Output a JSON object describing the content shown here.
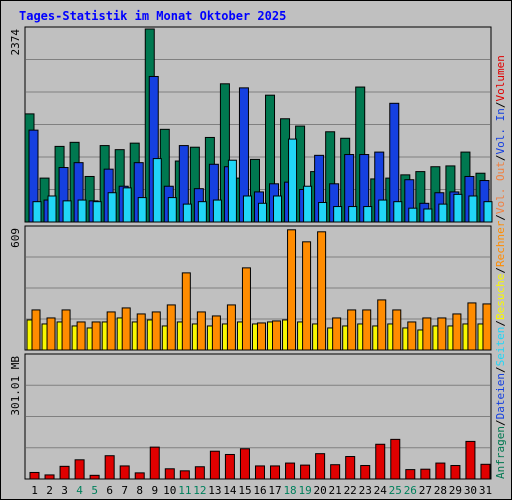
{
  "chart_data": [
    {
      "type": "bar",
      "panel": "requests",
      "title": "Tages-Statistik im Monat Oktober 2025",
      "ylabel_top": "2374",
      "categories": [
        "1",
        "2",
        "3",
        "4",
        "5",
        "6",
        "7",
        "8",
        "9",
        "10",
        "11",
        "12",
        "13",
        "14",
        "15",
        "16",
        "17",
        "18",
        "19",
        "20",
        "21",
        "22",
        "23",
        "24",
        "25",
        "26",
        "27",
        "28",
        "29",
        "30",
        "31"
      ],
      "weekend_days": [
        "4",
        "5",
        "11",
        "12",
        "18",
        "19",
        "25",
        "26"
      ],
      "ylim": [
        0,
        2374
      ],
      "series": [
        {
          "name": "Anfragen",
          "color": "#007850",
          "values": [
            1330,
            540,
            930,
            980,
            560,
            940,
            890,
            970,
            2374,
            1140,
            750,
            920,
            1040,
            1700,
            540,
            770,
            1560,
            1270,
            1180,
            620,
            1110,
            1030,
            1660,
            530,
            540,
            580,
            620,
            680,
            690,
            860,
            600
          ]
        },
        {
          "name": "Dateien",
          "color": "#1540e0",
          "values": [
            1130,
            270,
            670,
            730,
            260,
            650,
            440,
            730,
            1790,
            440,
            940,
            410,
            710,
            680,
            1650,
            370,
            470,
            490,
            400,
            820,
            470,
            830,
            830,
            860,
            1460,
            520,
            230,
            360,
            370,
            560,
            510
          ]
        },
        {
          "name": "Seiten",
          "color": "#21d6f7",
          "values": [
            250,
            320,
            260,
            270,
            250,
            360,
            420,
            300,
            780,
            300,
            220,
            250,
            270,
            760,
            320,
            230,
            320,
            1020,
            440,
            240,
            190,
            190,
            190,
            270,
            250,
            170,
            160,
            220,
            340,
            320,
            250
          ]
        }
      ]
    },
    {
      "type": "bar",
      "panel": "visits",
      "ylabel_top": "609",
      "categories": [
        "1",
        "2",
        "3",
        "4",
        "5",
        "6",
        "7",
        "8",
        "9",
        "10",
        "11",
        "12",
        "13",
        "14",
        "15",
        "16",
        "17",
        "18",
        "19",
        "20",
        "21",
        "22",
        "23",
        "24",
        "25",
        "26",
        "27",
        "28",
        "29",
        "30",
        "31"
      ],
      "ylim": [
        0,
        609
      ],
      "series": [
        {
          "name": "Besuche",
          "color": "#f8f800",
          "values": [
            150,
            130,
            140,
            120,
            110,
            140,
            160,
            140,
            150,
            120,
            140,
            130,
            120,
            130,
            140,
            130,
            140,
            150,
            140,
            130,
            110,
            120,
            130,
            120,
            130,
            110,
            100,
            120,
            120,
            130,
            130
          ]
        },
        {
          "name": "Rechner",
          "color": "#ff8c00",
          "values": [
            200,
            160,
            200,
            140,
            140,
            190,
            210,
            180,
            190,
            225,
            385,
            190,
            170,
            225,
            410,
            135,
            145,
            600,
            540,
            590,
            160,
            200,
            200,
            250,
            200,
            140,
            160,
            160,
            180,
            235,
            230
          ]
        }
      ]
    },
    {
      "type": "bar",
      "panel": "volume",
      "ylabel_top": "301.01 MB",
      "categories": [
        "1",
        "2",
        "3",
        "4",
        "5",
        "6",
        "7",
        "8",
        "9",
        "10",
        "11",
        "12",
        "13",
        "14",
        "15",
        "16",
        "17",
        "18",
        "19",
        "20",
        "21",
        "22",
        "23",
        "24",
        "25",
        "26",
        "27",
        "28",
        "29",
        "30",
        "31"
      ],
      "ylim": [
        0,
        301.01
      ],
      "series": [
        {
          "name": "Volumen",
          "color": "#e00000",
          "values": [
            16,
            10,
            31,
            47,
            9,
            57,
            32,
            15,
            78,
            25,
            20,
            30,
            68,
            60,
            74,
            32,
            32,
            39,
            34,
            62,
            35,
            55,
            33,
            85,
            97,
            23,
            24,
            39,
            33,
            92,
            36
          ]
        }
      ]
    }
  ],
  "legend_right": [
    {
      "text": "Anfragen",
      "color": "#007850"
    },
    {
      "text": "/",
      "color": "#000000"
    },
    {
      "text": "Dateien",
      "color": "#1540e0"
    },
    {
      "text": "/",
      "color": "#000000"
    },
    {
      "text": "Seiten",
      "color": "#21d6f7"
    },
    {
      "text": "/",
      "color": "#000000"
    },
    {
      "text": "Besuche",
      "color": "#f8f800"
    },
    {
      "text": "/",
      "color": "#000000"
    },
    {
      "text": "Rechner",
      "color": "#ff8c00"
    },
    {
      "text": "/",
      "color": "#000000"
    },
    {
      "text": "Vol. Out",
      "color": "#f08040"
    },
    {
      "text": "/",
      "color": "#000000"
    },
    {
      "text": "Vol. In",
      "color": "#1540e0"
    },
    {
      "text": "/",
      "color": "#000000"
    },
    {
      "text": "Volumen",
      "color": "#e00000"
    }
  ],
  "colors": {
    "title": "#0000ff",
    "panel_bg": "#c0c0c0",
    "grid": "#808080",
    "weekend_label": "#00805c",
    "weekday_label": "#000000"
  }
}
